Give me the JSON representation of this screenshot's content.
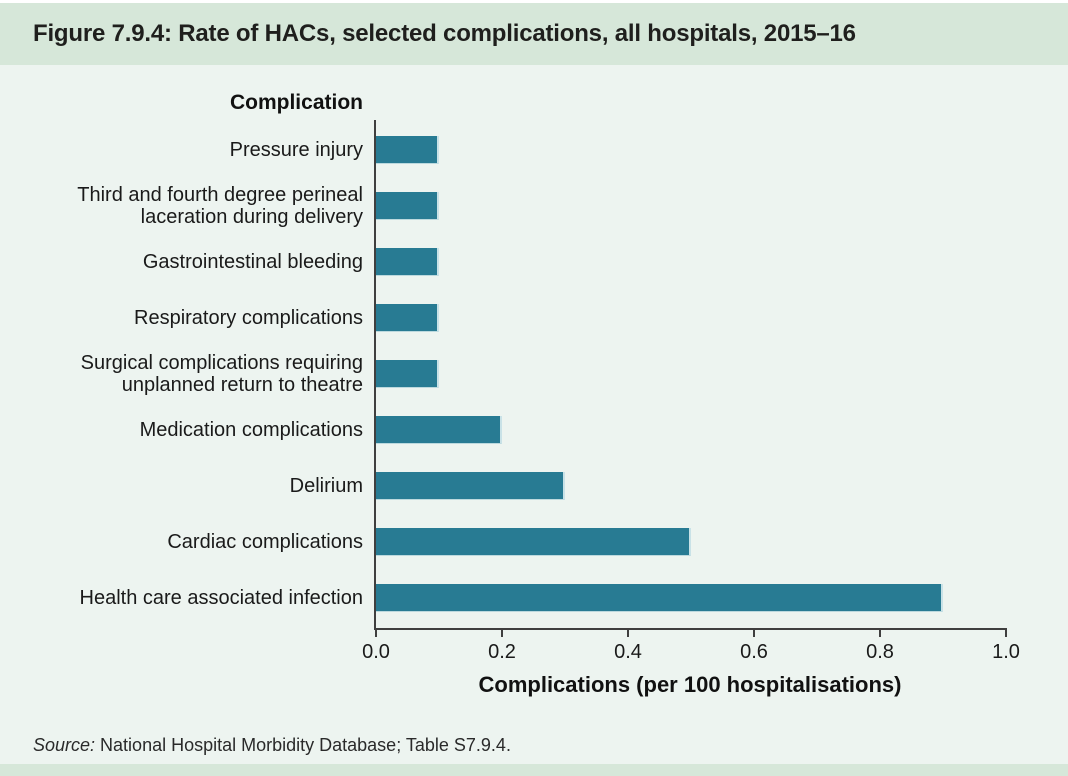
{
  "page": {
    "title": "Figure 7.9.4: Rate of HACs, selected complications, all hospitals, 2015–16",
    "source_prefix": "Source:",
    "source_text": " National Hospital Morbidity Database; Table S7.9.4.",
    "colors": {
      "header_bg": "#d6e7d9",
      "body_bg": "#edf4f0",
      "bar_fill": "#287b93",
      "bar_edge": "#c9e2e7",
      "axis": "#3f3f3f",
      "text": "#1a1a1a"
    }
  },
  "chart_data": {
    "type": "bar",
    "orientation": "horizontal",
    "title": "Figure 7.9.4: Rate of HACs, selected complications, all hospitals, 2015–16",
    "category_axis_label": "Complication",
    "value_axis_label": "Complications (per 100 hospitalisations)",
    "categories": [
      [
        "Pressure injury"
      ],
      [
        "Third and fourth degree perineal",
        "laceration during delivery"
      ],
      [
        "Gastrointestinal bleeding"
      ],
      [
        "Respiratory complications"
      ],
      [
        "Surgical complications requiring",
        "unplanned return to theatre"
      ],
      [
        "Medication complications"
      ],
      [
        "Delirium"
      ],
      [
        "Cardiac complications"
      ],
      [
        "Health care associated infection"
      ]
    ],
    "values": [
      0.1,
      0.1,
      0.1,
      0.1,
      0.1,
      0.2,
      0.3,
      0.5,
      0.9
    ],
    "xlim": [
      0,
      1
    ],
    "xticks": [
      0.0,
      0.2,
      0.4,
      0.6,
      0.8,
      1.0
    ],
    "tick_decimals": 1,
    "grid": false,
    "legend": false
  }
}
